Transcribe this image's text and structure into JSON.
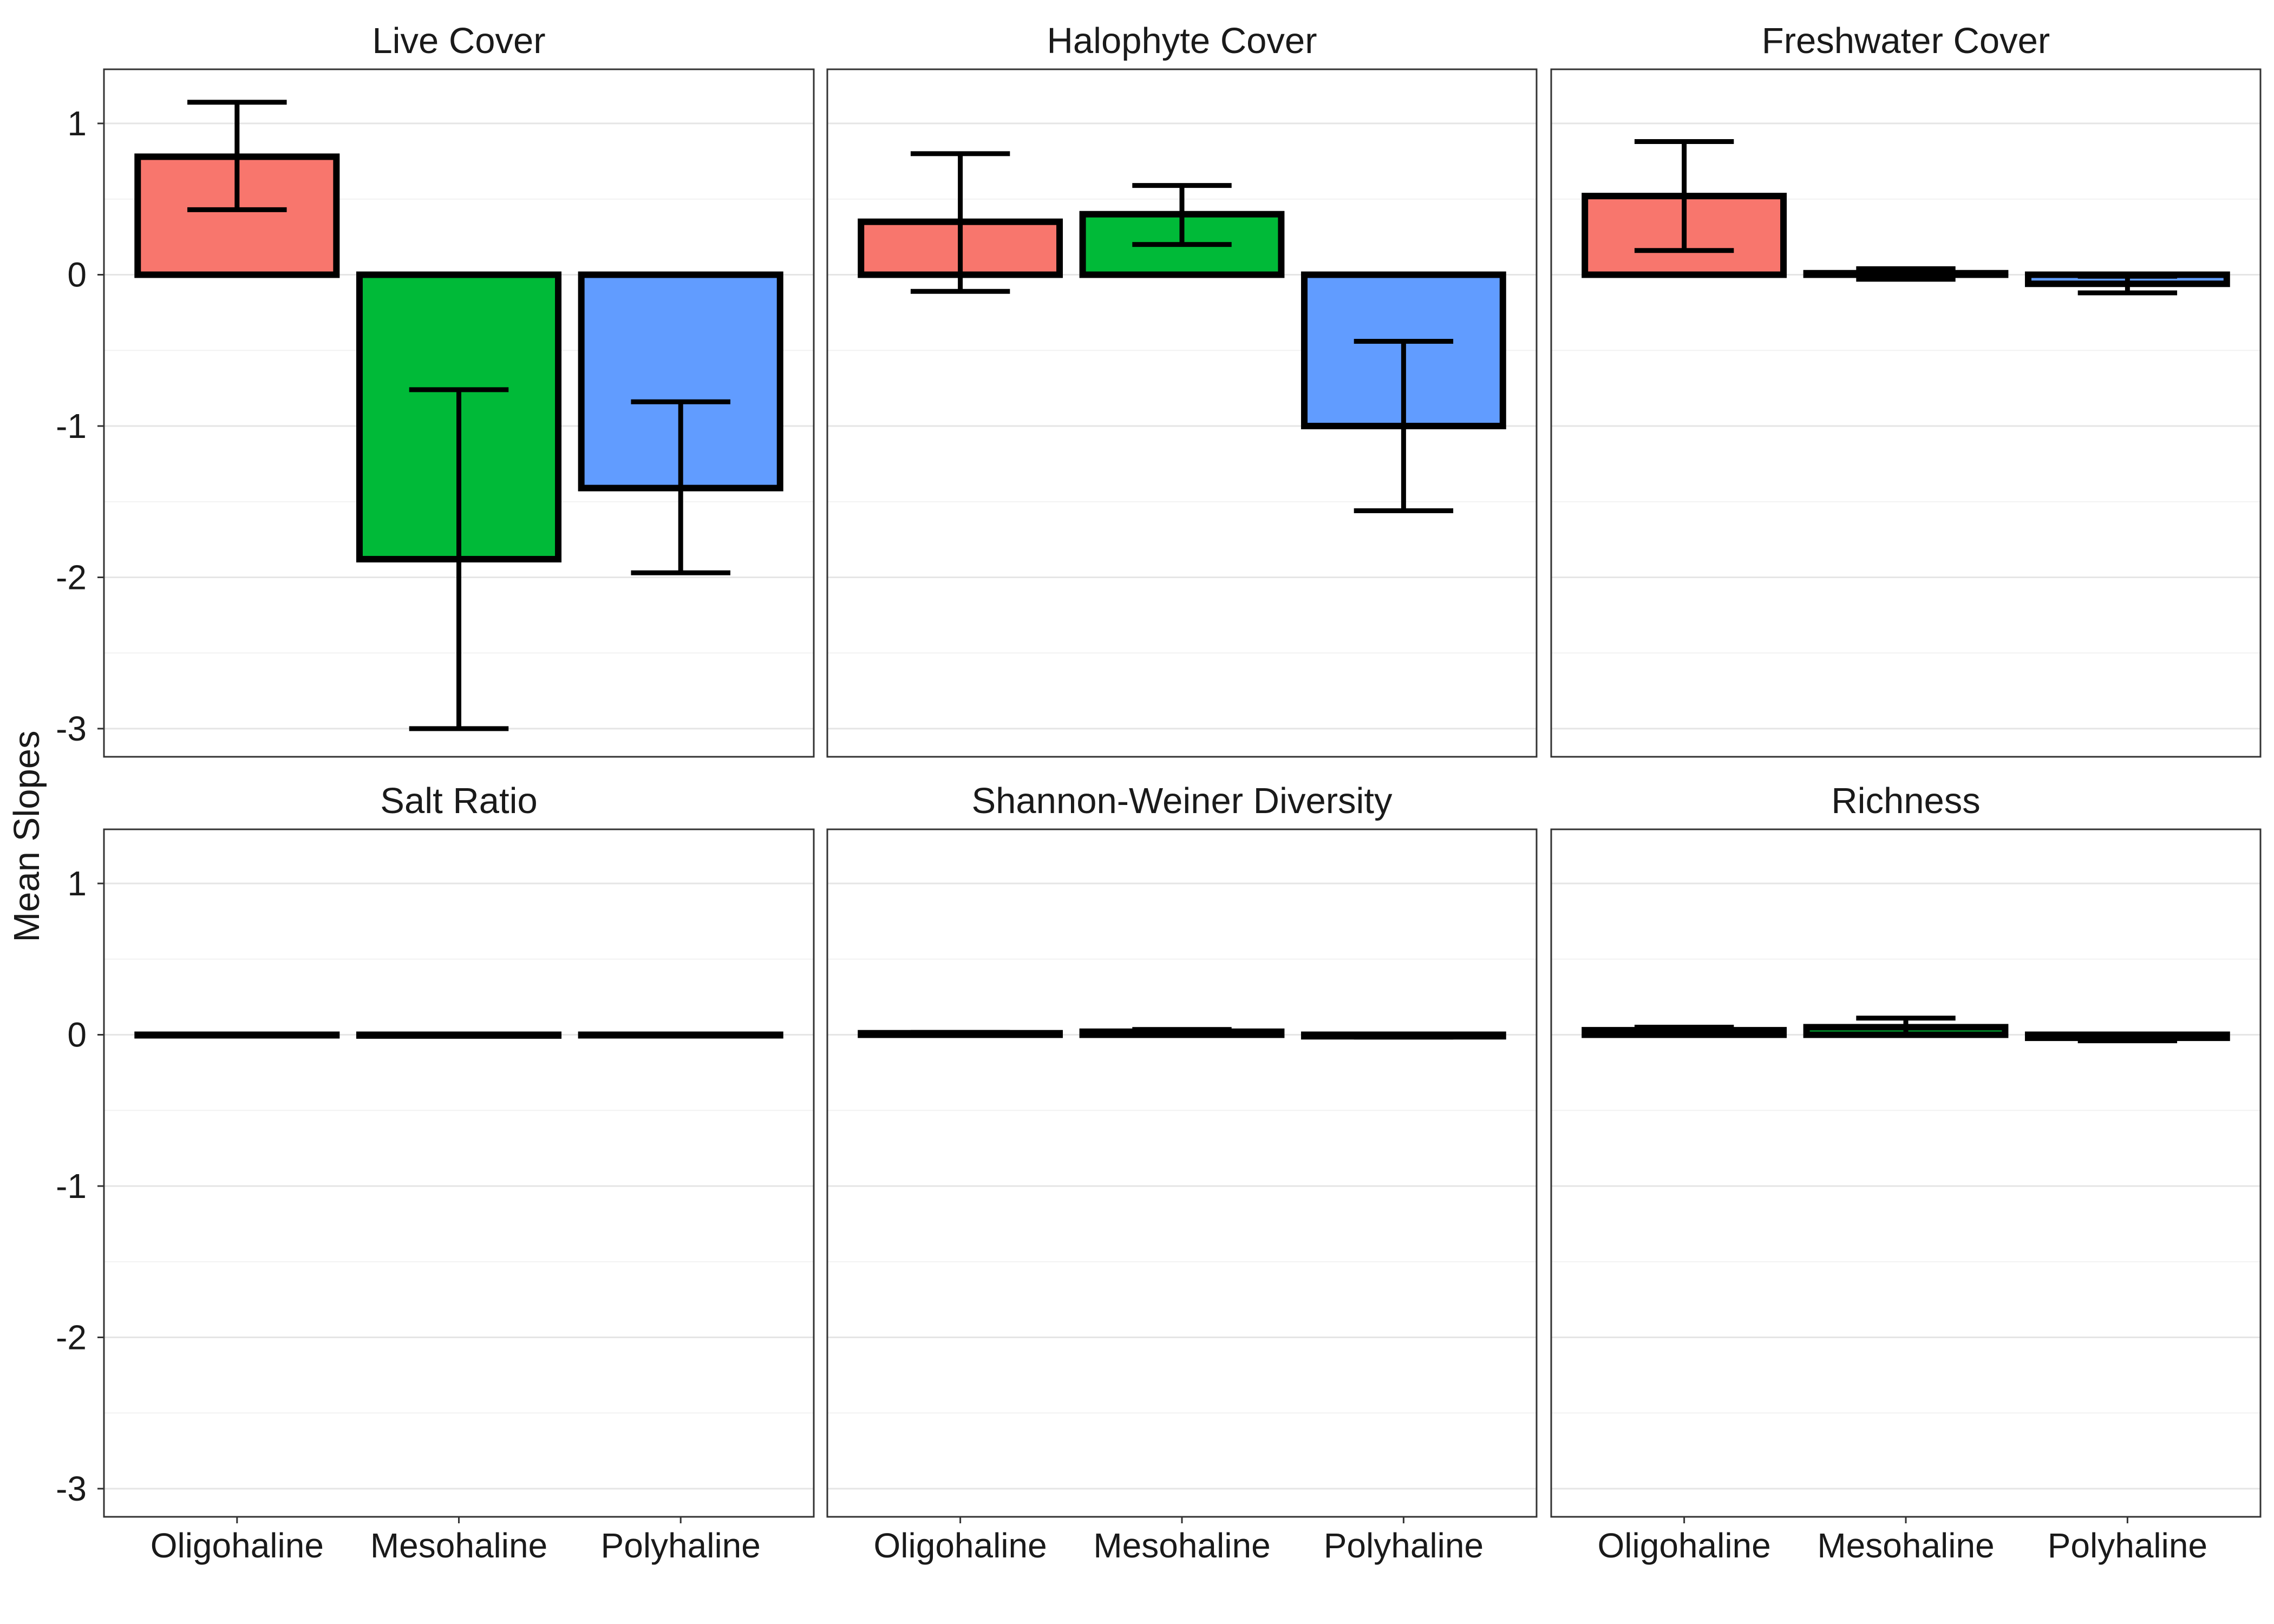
{
  "chart_data": {
    "type": "bar",
    "ylabel": "Mean Slopes",
    "ylim": [
      -3.15,
      1.35
    ],
    "y_ticks": [
      1,
      0,
      -1,
      -2,
      -3
    ],
    "y_tick_labels": [
      "1",
      "0",
      "-1",
      "-2",
      "-3"
    ],
    "grid": true,
    "legend": "none",
    "categories": [
      "Oligohaline",
      "Mesohaline",
      "Polyhaline"
    ],
    "category_colors": [
      "#F8766D",
      "#00BA38",
      "#619CFF"
    ],
    "panels": [
      {
        "title": "Live Cover",
        "values": [
          0.78,
          -1.88,
          -1.41
        ],
        "err_low": [
          0.43,
          -3.0,
          -1.97
        ],
        "err_high": [
          1.14,
          -0.76,
          -0.84
        ]
      },
      {
        "title": "Halophyte Cover",
        "values": [
          0.35,
          0.4,
          -1.0
        ],
        "err_low": [
          -0.11,
          0.2,
          -1.56
        ],
        "err_high": [
          0.8,
          0.59,
          -0.44
        ]
      },
      {
        "title": "Freshwater Cover",
        "values": [
          0.52,
          0.01,
          -0.06
        ],
        "err_low": [
          0.16,
          -0.03,
          -0.12
        ],
        "err_high": [
          0.88,
          0.04,
          -0.01
        ]
      },
      {
        "title": "Salt Ratio",
        "values": [
          0.0,
          -0.005,
          0.0
        ],
        "err_low": [
          0.0,
          -0.008,
          -0.002
        ],
        "err_high": [
          0.001,
          -0.002,
          0.002
        ]
      },
      {
        "title": "Shannon-Weiner Diversity",
        "values": [
          0.01,
          0.02,
          -0.01
        ],
        "err_low": [
          0.005,
          0.005,
          -0.015
        ],
        "err_high": [
          0.015,
          0.035,
          -0.005
        ]
      },
      {
        "title": "Richness",
        "values": [
          0.03,
          0.05,
          -0.02
        ],
        "err_low": [
          0.01,
          0.0,
          -0.04
        ],
        "err_high": [
          0.05,
          0.11,
          0.0
        ]
      }
    ]
  }
}
